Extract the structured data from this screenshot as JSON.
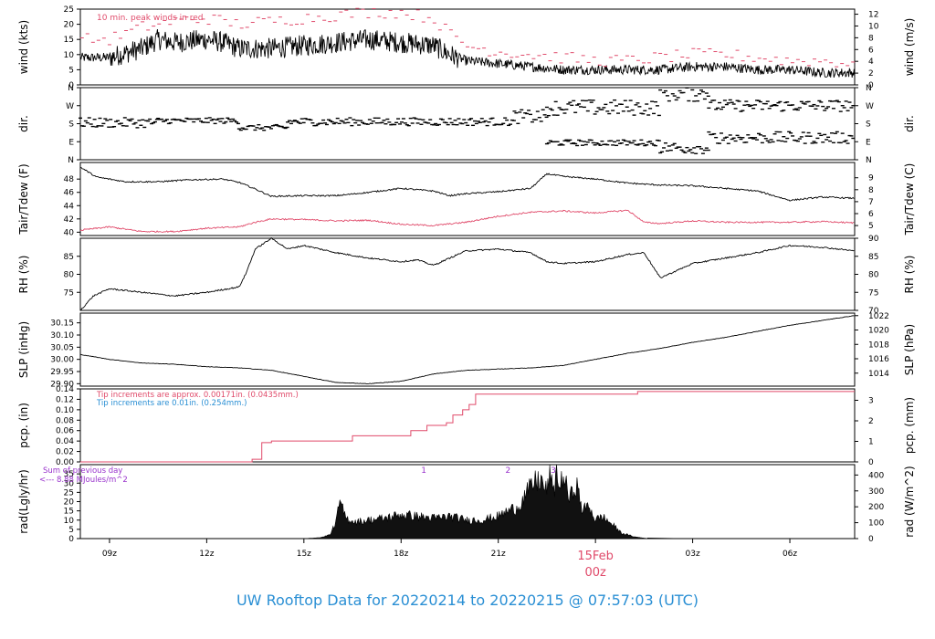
{
  "footer": {
    "title": "UW Rooftop Data for 20220214  to  20220215 @ 07:57:03  (UTC)",
    "color": "#2a8fd4"
  },
  "colors": {
    "line": "#000000",
    "red": "#e04a6a",
    "blue": "#2a8fd4",
    "purple": "#9933cc"
  },
  "x_axis": {
    "range_hours": [
      8.1,
      32.0
    ],
    "ticks": [
      {
        "h": 9,
        "label": "09z"
      },
      {
        "h": 12,
        "label": "12z"
      },
      {
        "h": 15,
        "label": "15z"
      },
      {
        "h": 18,
        "label": "18z"
      },
      {
        "h": 21,
        "label": "21z"
      },
      {
        "h": 27,
        "label": "03z"
      },
      {
        "h": 30,
        "label": "06z"
      }
    ],
    "date_marker": {
      "h": 24,
      "date": "15Feb",
      "time": "00z"
    }
  },
  "chart_data": [
    {
      "type": "line",
      "id": "wind",
      "ylabel": "wind (kts)",
      "ylabel_right": "wind (m/s)",
      "ylim": [
        0,
        25
      ],
      "yticks": [
        0,
        5,
        10,
        15,
        20,
        25
      ],
      "yticks_right": [
        0,
        2,
        4,
        6,
        8,
        10,
        12
      ],
      "annotation": "10 min. peak winds in red",
      "series": [
        {
          "style": "line",
          "x": [
            8.1,
            9,
            10,
            10.5,
            11,
            12,
            12.5,
            13,
            14,
            15,
            16,
            17,
            18,
            19,
            19.5,
            20,
            21,
            22,
            23,
            24,
            25,
            26,
            27,
            28,
            29,
            30,
            31,
            32
          ],
          "values": [
            9,
            9,
            12,
            15,
            14,
            15,
            14,
            12,
            12,
            13,
            14,
            15,
            14,
            13,
            10,
            8,
            7,
            6,
            5,
            5,
            5,
            5,
            6,
            6,
            5,
            5,
            4,
            4
          ]
        },
        {
          "style": "peaks",
          "x": [
            8.1,
            9,
            10,
            11,
            12,
            13,
            14,
            15,
            16,
            17,
            18,
            19,
            19.5,
            20,
            21,
            22,
            23,
            24,
            25,
            26,
            27,
            28,
            29,
            30,
            31,
            32
          ],
          "values": [
            15,
            15,
            19,
            21,
            22,
            20,
            21,
            22,
            23,
            24,
            24,
            22,
            17,
            13,
            11,
            10,
            9,
            8,
            8,
            9,
            10,
            10,
            9,
            8,
            8,
            7
          ]
        }
      ]
    },
    {
      "type": "scatter",
      "id": "dir",
      "ylabel": "dir.",
      "ylabel_right": "dir.",
      "ylim": [
        0,
        360
      ],
      "ytick_labels": [
        {
          "v": 0,
          "label": "N"
        },
        {
          "v": 90,
          "label": "E"
        },
        {
          "v": 180,
          "label": "S"
        },
        {
          "v": 270,
          "label": "W"
        },
        {
          "v": 360,
          "label": "N"
        }
      ],
      "bands": [
        {
          "x": [
            8.1,
            32.0
          ],
          "values": []
        },
        {
          "from": 8.1,
          "to": 10.5,
          "center": 185,
          "spread": 25
        },
        {
          "from": 10.5,
          "to": 13,
          "center": 195,
          "spread": 15
        },
        {
          "from": 13,
          "to": 14.5,
          "center": 160,
          "spread": 15
        },
        {
          "from": 14.5,
          "to": 21.5,
          "center": 190,
          "spread": 20
        },
        {
          "from": 21.5,
          "to": 22.5,
          "center": 215,
          "spread": 35
        },
        {
          "from": 22.5,
          "to": 26,
          "center": 85,
          "spread": 15
        },
        {
          "from": 22.5,
          "to": 26,
          "center": 260,
          "spread": 40
        },
        {
          "from": 26,
          "to": 27.5,
          "center": 330,
          "spread": 40
        },
        {
          "from": 26,
          "to": 27.5,
          "center": 60,
          "spread": 30
        },
        {
          "from": 27.5,
          "to": 32,
          "center": 270,
          "spread": 30
        },
        {
          "from": 27.5,
          "to": 32,
          "center": 110,
          "spread": 30
        }
      ]
    },
    {
      "type": "line",
      "id": "temp",
      "ylabel": "Tair/Tdew (F)",
      "ylabel_right": "Tair/Tdew (C)",
      "ylim": [
        39.5,
        50.5
      ],
      "yticks": [
        40,
        42,
        44,
        46,
        48
      ],
      "yticks_right": [
        5,
        6,
        7,
        8,
        9
      ],
      "series": [
        {
          "color": "black",
          "x": [
            8.1,
            8.6,
            9.5,
            10.5,
            11.5,
            12.5,
            13,
            13.5,
            14,
            15,
            16,
            17,
            18,
            19,
            19.5,
            20,
            21,
            22,
            22.5,
            23,
            24,
            25,
            26,
            27,
            28,
            29,
            30,
            31,
            32
          ],
          "values": [
            49.8,
            48.3,
            47.6,
            47.6,
            47.9,
            48.0,
            47.5,
            46.5,
            45.4,
            45.5,
            45.5,
            46.0,
            46.6,
            46.2,
            45.5,
            45.8,
            46.1,
            46.6,
            48.8,
            48.4,
            48.0,
            47.4,
            47.1,
            47.0,
            46.6,
            46.2,
            44.8,
            45.3,
            45.1
          ]
        },
        {
          "color": "red",
          "x": [
            8.1,
            9,
            10,
            11,
            12,
            13,
            13.5,
            14,
            15,
            16,
            17,
            18,
            19,
            20,
            21,
            22,
            23,
            24,
            25,
            25.5,
            26,
            27,
            28,
            29,
            30,
            31,
            32
          ],
          "values": [
            40.3,
            40.8,
            40.1,
            40.1,
            40.6,
            40.8,
            41.5,
            42.0,
            41.9,
            41.7,
            41.8,
            41.2,
            41.0,
            41.5,
            42.4,
            43.0,
            43.2,
            42.9,
            43.3,
            41.5,
            41.3,
            41.7,
            41.5,
            41.5,
            41.5,
            41.6,
            41.4
          ]
        }
      ]
    },
    {
      "type": "line",
      "id": "rh",
      "ylabel": "RH (%)",
      "ylabel_right": "RH (%)",
      "ylim": [
        70,
        90
      ],
      "yticks": [
        75,
        80,
        85
      ],
      "yticks_right": [
        70,
        75,
        80,
        85,
        90
      ],
      "series": [
        {
          "color": "black",
          "x": [
            8.1,
            8.5,
            9,
            10,
            11,
            12,
            13,
            13.2,
            13.5,
            14,
            14.5,
            15,
            16,
            17,
            18,
            18.5,
            19,
            20,
            21,
            22,
            22.5,
            23,
            24,
            25,
            25.5,
            26,
            27,
            28,
            29,
            29.5,
            30,
            31,
            32
          ],
          "values": [
            70,
            74,
            76,
            75,
            74,
            75,
            76.5,
            80,
            87,
            90,
            87,
            88,
            86,
            84.5,
            83.5,
            84,
            82.5,
            86.5,
            87,
            86,
            83.5,
            83,
            83.5,
            85.5,
            86,
            79,
            83,
            84.5,
            86,
            87,
            88,
            87.5,
            86.5
          ]
        }
      ]
    },
    {
      "type": "line",
      "id": "slp",
      "ylabel": "SLP (inHg)",
      "ylabel_right": "SLP (hPa)",
      "ylim": [
        29.89,
        30.19
      ],
      "yticks": [
        29.9,
        29.95,
        30.0,
        30.05,
        30.1,
        30.15
      ],
      "yticks_right": [
        1014,
        1016,
        1018,
        1020,
        1022
      ],
      "hpa_per_inhg": 33.8639,
      "series": [
        {
          "color": "black",
          "x": [
            8.1,
            9,
            10,
            11,
            12,
            13,
            14,
            15,
            16,
            17,
            18,
            19,
            20,
            21,
            22,
            23,
            24,
            25,
            26,
            27,
            28,
            29,
            30,
            31,
            32
          ],
          "values": [
            30.02,
            30.0,
            29.985,
            29.98,
            29.97,
            29.965,
            29.955,
            29.93,
            29.905,
            29.9,
            29.91,
            29.94,
            29.955,
            29.96,
            29.965,
            29.975,
            30.0,
            30.025,
            30.045,
            30.07,
            30.09,
            30.115,
            30.14,
            30.16,
            30.18
          ]
        }
      ]
    },
    {
      "type": "line",
      "id": "pcp",
      "ylabel": "pcp. (in)",
      "ylabel_right": "pcp. (mm)",
      "ylim": [
        0,
        0.14
      ],
      "yticks": [
        0.0,
        0.02,
        0.04,
        0.06,
        0.08,
        0.1,
        0.12,
        0.14
      ],
      "yticks_right": [
        0,
        1,
        2,
        3
      ],
      "annotations": [
        {
          "text": "Tip increments are approx. 0.00171in. (0.0435mm.)",
          "color": "red"
        },
        {
          "text": "Tip increments are 0.01in. (0.254mm.)",
          "color": "blue"
        }
      ],
      "series": [
        {
          "color": "red",
          "step": true,
          "x": [
            8.1,
            13.4,
            13.4,
            13.7,
            13.7,
            14.0,
            14.0,
            16.5,
            16.5,
            18.3,
            18.3,
            18.8,
            18.8,
            19.4,
            19.4,
            19.6,
            19.6,
            19.9,
            19.9,
            20.1,
            20.1,
            20.3,
            20.3,
            25.3,
            25.3,
            32.0
          ],
          "values": [
            0.0,
            0.0,
            0.005,
            0.005,
            0.037,
            0.037,
            0.04,
            0.04,
            0.05,
            0.05,
            0.06,
            0.06,
            0.07,
            0.07,
            0.075,
            0.075,
            0.09,
            0.09,
            0.1,
            0.1,
            0.11,
            0.11,
            0.13,
            0.13,
            0.135,
            0.135
          ]
        }
      ]
    },
    {
      "type": "area",
      "id": "rad",
      "ylabel": "rad(Lgly/hr)",
      "ylabel_right": "rad (W/m^2)",
      "ylim": [
        0,
        40
      ],
      "yticks": [
        0,
        5,
        10,
        15,
        20,
        25,
        30,
        35
      ],
      "ytick_labels_shown": [
        0,
        5,
        10,
        15,
        20,
        25,
        30,
        35
      ],
      "yticks_right": [
        0,
        100,
        200,
        300,
        400
      ],
      "wm2_per_lglyhr": 11.63,
      "annotation_lines": [
        "Sum of previous day",
        "<--- 8.88 MJoules/m^2"
      ],
      "cloud_marks": [
        {
          "h": 18.7,
          "label": "1"
        },
        {
          "h": 21.3,
          "label": "2"
        },
        {
          "h": 22.7,
          "label": "3"
        }
      ],
      "series": [
        {
          "color": "black",
          "x": [
            15.0,
            15.5,
            15.8,
            16.0,
            16.1,
            16.3,
            16.6,
            17.0,
            17.5,
            18.0,
            18.5,
            19.0,
            19.5,
            20.0,
            20.5,
            21.0,
            21.3,
            21.6,
            21.9,
            22.1,
            22.3,
            22.5,
            22.6,
            22.7,
            22.8,
            22.9,
            23.0,
            23.2,
            23.4,
            23.6,
            23.8,
            24.0,
            24.2,
            24.5,
            24.8,
            25.2,
            25.6
          ],
          "values": [
            0,
            0.5,
            2,
            9,
            20,
            11,
            9,
            10,
            11,
            13,
            12,
            11,
            12,
            10,
            10,
            12,
            15,
            17,
            25,
            30,
            32,
            25,
            38,
            22,
            38,
            26,
            35,
            21,
            30,
            15,
            18,
            10,
            12,
            8,
            3,
            1,
            0
          ]
        }
      ]
    }
  ]
}
